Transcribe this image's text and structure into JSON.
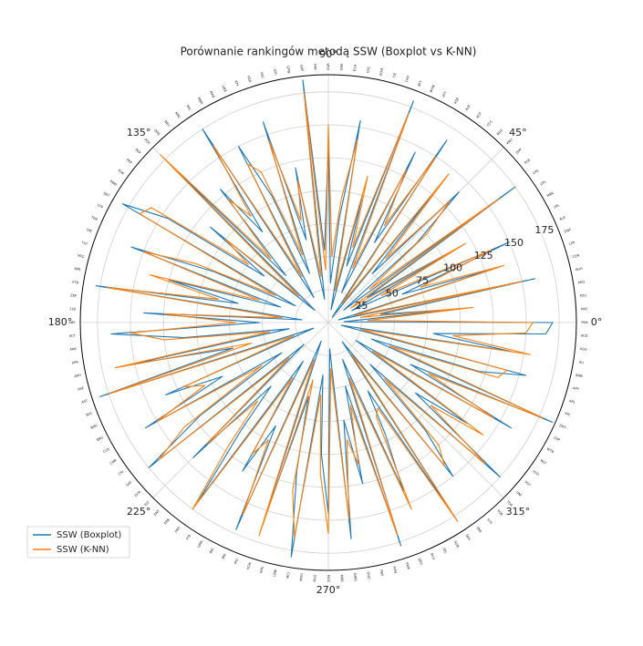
{
  "chart_data": {
    "type": "radar",
    "title": "Porównanie rankingów metodą SSW (Boxplot vs K-NN)",
    "categories": [
      "PKN",
      "PKO",
      "PZU",
      "PEO",
      "KGH",
      "CDR",
      "LPP",
      "DNP",
      "ALE",
      "SPL",
      "MBK",
      "OPL",
      "CPS",
      "PGE",
      "JSW",
      "KRU",
      "BDX",
      "CCC",
      "ACP",
      "ALR",
      "ASB",
      "ATT",
      "BHW",
      "BFT",
      "CAR",
      "CIE",
      "DOM",
      "DVL",
      "ECH",
      "ENA",
      "EUR",
      "FMF",
      "GPP",
      "GPW",
      "GTC",
      "ING",
      "KER",
      "KTY",
      "LWB",
      "MAB",
      "MBR",
      "MIL",
      "MRC",
      "NEU",
      "OPN",
      "PCR",
      "PEP",
      "PKP",
      "PLW",
      "RBW",
      "SNT",
      "STP",
      "TEN",
      "TPE",
      "TXT",
      "VRG",
      "WPL",
      "XTB",
      "ZEP",
      "11B",
      "ABE",
      "ACT",
      "AMC",
      "APR",
      "ARH",
      "ASE",
      "AST",
      "BIO",
      "BMC",
      "BRS",
      "CLN",
      "CMR",
      "CRI",
      "DAT",
      "DCR",
      "ELT",
      "ENT",
      "ERB",
      "FRO",
      "FTE",
      "GRN",
      "IMC",
      "INK",
      "IPO",
      "KGN",
      "KRK",
      "LBW",
      "MCI",
      "MDG",
      "MLG",
      "MOC",
      "MRB",
      "NWG",
      "OND",
      "PBX",
      "PHN",
      "PXM",
      "QRS",
      "RVU",
      "SEL",
      "SGN",
      "SKA",
      "SNK",
      "STX",
      "TOR",
      "TOA",
      "UNI",
      "VOT",
      "VVD",
      "WLT",
      "WTN",
      "ZAP",
      "ZMT",
      "ATC",
      "ARL",
      "APT",
      "AMB",
      "ALI",
      "AGO",
      "ACG"
    ],
    "series": [
      {
        "name": "SSW (Boxplot)",
        "color": "#1f77b4",
        "values": [
          170,
          12,
          95,
          40,
          160,
          8,
          130,
          60,
          150,
          20,
          110,
          35,
          175,
          15,
          90,
          140,
          50,
          125,
          5,
          165,
          70,
          145,
          25,
          180,
          45,
          100,
          10,
          155,
          80,
          30,
          135,
          55,
          185,
          18,
          120,
          65,
          160,
          40,
          105,
          150,
          22,
          175,
          85,
          130,
          48,
          170,
          14,
          115,
          60,
          145,
          180,
          28,
          95,
          160,
          38,
          125,
          70,
          178,
          20,
          140,
          52,
          165,
          110,
          30,
          150,
          75,
          182,
          12,
          135,
          90,
          160,
          42,
          120,
          175,
          25,
          145,
          65,
          105,
          168,
          35,
          130,
          88,
          172,
          15,
          155,
          58,
          115,
          180,
          40,
          100,
          145,
          20,
          165,
          75,
          125,
          50,
          178,
          30,
          140,
          95,
          60,
          170,
          18,
          150,
          110,
          45,
          175,
          85,
          130,
          25,
          160,
          70,
          186,
          35,
          120,
          155,
          10,
          140,
          80,
          165
        ]
      },
      {
        "name": "SSW (K-NN)",
        "color": "#ff7f0e",
        "values": [
          155,
          30,
          110,
          25,
          150,
          20,
          140,
          75,
          135,
          45,
          120,
          20,
          160,
          40,
          100,
          130,
          65,
          145,
          18,
          150,
          85,
          130,
          45,
          170,
          60,
          115,
          25,
          140,
          95,
          50,
          150,
          40,
          175,
          35,
          110,
          80,
          145,
          55,
          125,
          135,
          40,
          160,
          100,
          120,
          65,
          180,
          30,
          100,
          75,
          160,
          165,
          45,
          110,
          150,
          55,
          140,
          85,
          170,
          35,
          125,
          70,
          150,
          125,
          45,
          165,
          60,
          175,
          28,
          120,
          105,
          150,
          60,
          135,
          165,
          40,
          130,
          80,
          120,
          175,
          50,
          115,
          100,
          160,
          30,
          170,
          45,
          130,
          165,
          55,
          115,
          160,
          35,
          150,
          90,
          110,
          65,
          170,
          45,
          155,
          80,
          75,
          180,
          30,
          140,
          125,
          60,
          160,
          100,
          145,
          40,
          145,
          85,
          178,
          50,
          135,
          140,
          25,
          155,
          95,
          150
        ]
      }
    ],
    "ylim": [
      0,
      188
    ],
    "yticks": [
      25,
      50,
      75,
      100,
      125,
      150,
      175
    ],
    "xticks": [
      {
        "value": 0,
        "label": "0°"
      },
      {
        "value": 45,
        "label": "45°"
      },
      {
        "value": 90,
        "label": "90°"
      },
      {
        "value": 135,
        "label": "135°"
      },
      {
        "value": 180,
        "label": "180°"
      },
      {
        "value": 225,
        "label": "225°"
      },
      {
        "value": 270,
        "label": "270°"
      },
      {
        "value": 315,
        "label": "315°"
      }
    ],
    "grid": true,
    "legend": "lower left"
  }
}
